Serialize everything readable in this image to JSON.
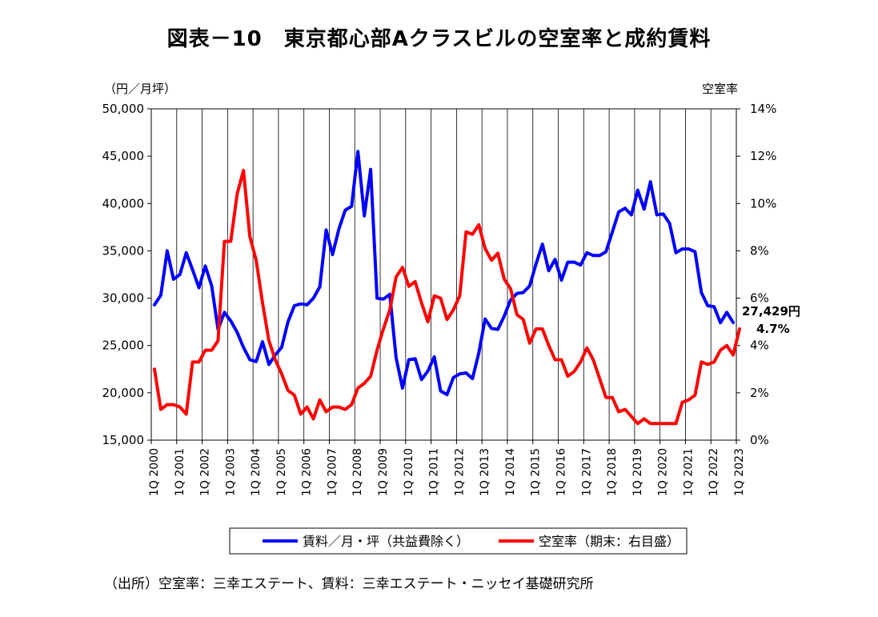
{
  "title": "図表－10　東京都心部Aクラスビルの空室率と成約賃料",
  "source": "（出所）空室率：三幸エステート、賃料：三幸エステート・ニッセイ基礎研究所",
  "chart_data": {
    "type": "line",
    "title": "図表－10　東京都心部Aクラスビルの空室率と成約賃料",
    "y_left_label": "（円／月坪）",
    "y_right_label": "空室率",
    "y_left_range": [
      15000,
      50000
    ],
    "y_right_range": [
      0,
      14
    ],
    "y_left_ticks": [
      "15,000",
      "20,000",
      "25,000",
      "30,000",
      "35,000",
      "40,000",
      "45,000",
      "50,000"
    ],
    "y_right_ticks": [
      "0%",
      "2%",
      "4%",
      "6%",
      "8%",
      "10%",
      "12%",
      "14%"
    ],
    "x_tick_labels": [
      "1Q 2000",
      "1Q 2001",
      "1Q 2002",
      "1Q 2003",
      "1Q 2004",
      "1Q 2005",
      "1Q 2006",
      "1Q 2007",
      "1Q 2008",
      "1Q 2009",
      "1Q 2010",
      "1Q 2011",
      "1Q 2012",
      "1Q 2013",
      "1Q 2014",
      "1Q 2015",
      "1Q 2016",
      "1Q 2017",
      "1Q 2018",
      "1Q 2019",
      "1Q 2020",
      "1Q 2021",
      "1Q 2022",
      "1Q 2023"
    ],
    "grid": "vertical",
    "legend_position": "bottom",
    "colors": {
      "rent": "#0000ff",
      "vacancy": "#ff0000"
    },
    "annotations": [
      "27,429円",
      "4.7%"
    ],
    "series": [
      {
        "name": "賃料／月・坪（共益費除く）",
        "axis": "left",
        "values": [
          29300,
          30300,
          35000,
          32000,
          32500,
          34800,
          33000,
          31100,
          33400,
          31300,
          26700,
          28500,
          27600,
          26400,
          24800,
          23500,
          23300,
          25400,
          23000,
          24000,
          24800,
          27500,
          29200,
          29400,
          29300,
          30000,
          31200,
          37200,
          34600,
          37300,
          39300,
          39700,
          45500,
          38700,
          43600,
          30000,
          29900,
          30400,
          23700,
          20500,
          23500,
          23600,
          21400,
          22300,
          23800,
          20200,
          19800,
          21600,
          22000,
          22100,
          21500,
          24200,
          27800,
          26800,
          26700,
          28100,
          29800,
          30500,
          30600,
          31300,
          33600,
          35700,
          32900,
          34100,
          31900,
          33800,
          33800,
          33500,
          34800,
          34500,
          34500,
          34900,
          37000,
          39100,
          39500,
          38800,
          41400,
          39400,
          42300,
          38800,
          38900,
          37900,
          34800,
          35200,
          35200,
          34900,
          30600,
          29200,
          29100,
          27400,
          28500,
          27429
        ]
      },
      {
        "name": "空室率（期末：右目盛）",
        "axis": "right",
        "values": [
          3.0,
          1.3,
          1.5,
          1.5,
          1.4,
          1.1,
          3.3,
          3.3,
          3.8,
          3.8,
          4.2,
          8.4,
          8.4,
          10.4,
          11.4,
          8.6,
          7.6,
          5.8,
          4.2,
          3.4,
          2.8,
          2.1,
          1.9,
          1.1,
          1.4,
          0.9,
          1.7,
          1.2,
          1.4,
          1.4,
          1.3,
          1.5,
          2.2,
          2.4,
          2.7,
          3.8,
          4.7,
          5.5,
          6.9,
          7.3,
          6.5,
          6.7,
          5.8,
          5.0,
          6.1,
          6.0,
          5.1,
          5.5,
          6.1,
          8.8,
          8.7,
          9.1,
          8.1,
          7.6,
          7.9,
          6.8,
          6.4,
          5.3,
          5.1,
          4.1,
          4.7,
          4.7,
          4.0,
          3.4,
          3.4,
          2.7,
          2.9,
          3.3,
          3.9,
          3.4,
          2.6,
          1.8,
          1.8,
          1.2,
          1.3,
          1.0,
          0.7,
          0.9,
          0.7,
          0.7,
          0.7,
          0.7,
          0.7,
          1.6,
          1.7,
          1.9,
          3.3,
          3.2,
          3.3,
          3.8,
          4.0,
          3.6,
          4.7
        ]
      }
    ]
  }
}
